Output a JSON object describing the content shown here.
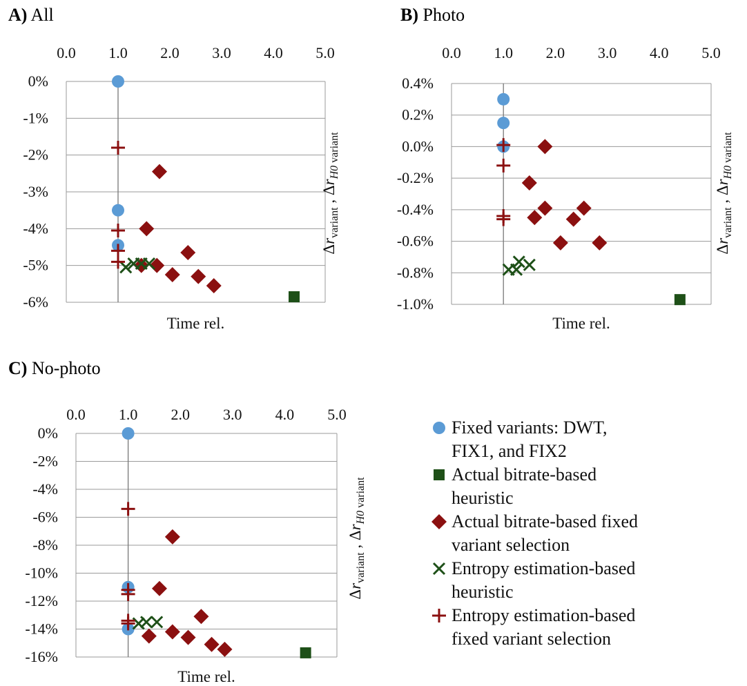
{
  "legend": [
    {
      "key": "fixed",
      "label_lines": [
        "Fixed variants: DWT,",
        "FIX1, and FIX2"
      ],
      "marker": "circle",
      "color": "#5B9BD5"
    },
    {
      "key": "actual_heuristic",
      "label_lines": [
        "Actual bitrate-based",
        "heuristic"
      ],
      "marker": "square",
      "color": "#1E5018"
    },
    {
      "key": "actual_fixed",
      "label_lines": [
        "Actual bitrate-based fixed",
        "variant selection"
      ],
      "marker": "diamond",
      "color": "#8B1010"
    },
    {
      "key": "entropy_heuristic",
      "label_lines": [
        "Entropy estimation-based",
        "heuristic"
      ],
      "marker": "x",
      "color": "#1E5018"
    },
    {
      "key": "entropy_fixed",
      "label_lines": [
        "Entropy estimation-based",
        "fixed variant selection"
      ],
      "marker": "plus",
      "color": "#8B1010"
    }
  ],
  "chart_data": [
    {
      "panel": "A)",
      "title": "All",
      "type": "scatter",
      "xlabel": "Time rel.",
      "ylabel": "Δr_variant , Δr_H0 variant",
      "xlim": [
        0,
        5
      ],
      "xticks": [
        "0.0",
        "1.0",
        "2.0",
        "3.0",
        "4.0",
        "5.0"
      ],
      "ylim": [
        -6,
        0
      ],
      "yticks": [
        "0%",
        "-1%",
        "-2%",
        "-3%",
        "-4%",
        "-5%",
        "-6%"
      ],
      "yunit": "%",
      "series": [
        {
          "key": "fixed",
          "points": [
            [
              1.0,
              0.0
            ],
            [
              1.0,
              -3.5
            ],
            [
              1.0,
              -4.45
            ]
          ]
        },
        {
          "key": "actual_heuristic",
          "points": [
            [
              4.4,
              -5.85
            ]
          ]
        },
        {
          "key": "actual_fixed",
          "points": [
            [
              1.8,
              -2.45
            ],
            [
              1.55,
              -4.0
            ],
            [
              1.45,
              -5.0
            ],
            [
              1.75,
              -5.0
            ],
            [
              2.35,
              -4.65
            ],
            [
              2.05,
              -5.25
            ],
            [
              2.55,
              -5.3
            ],
            [
              2.85,
              -5.55
            ]
          ]
        },
        {
          "key": "entropy_heuristic",
          "points": [
            [
              1.15,
              -5.05
            ],
            [
              1.3,
              -4.95
            ],
            [
              1.45,
              -4.95
            ],
            [
              1.6,
              -4.95
            ]
          ]
        },
        {
          "key": "entropy_fixed",
          "points": [
            [
              1.0,
              -1.8
            ],
            [
              1.0,
              -4.05
            ],
            [
              1.0,
              -4.6
            ],
            [
              1.0,
              -4.9
            ]
          ]
        }
      ]
    },
    {
      "panel": "B)",
      "title": "Photo",
      "type": "scatter",
      "xlabel": "Time rel.",
      "ylabel": "Δr_variant , Δr_H0 variant",
      "xlim": [
        0,
        5
      ],
      "xticks": [
        "0.0",
        "1.0",
        "2.0",
        "3.0",
        "4.0",
        "5.0"
      ],
      "ylim": [
        -1.0,
        0.4
      ],
      "yticks": [
        "0.4%",
        "0.2%",
        "0.0%",
        "-0.2%",
        "-0.4%",
        "-0.6%",
        "-0.8%",
        "-1.0%"
      ],
      "yunit": "%",
      "series": [
        {
          "key": "fixed",
          "points": [
            [
              1.0,
              0.3
            ],
            [
              1.0,
              0.15
            ],
            [
              1.0,
              0.0
            ]
          ]
        },
        {
          "key": "actual_heuristic",
          "points": [
            [
              4.4,
              -0.97
            ]
          ]
        },
        {
          "key": "actual_fixed",
          "points": [
            [
              1.8,
              0.0
            ],
            [
              1.5,
              -0.23
            ],
            [
              1.8,
              -0.39
            ],
            [
              1.6,
              -0.45
            ],
            [
              2.55,
              -0.39
            ],
            [
              2.35,
              -0.46
            ],
            [
              2.1,
              -0.61
            ],
            [
              2.85,
              -0.61
            ]
          ]
        },
        {
          "key": "entropy_heuristic",
          "points": [
            [
              1.1,
              -0.78
            ],
            [
              1.25,
              -0.78
            ],
            [
              1.3,
              -0.73
            ],
            [
              1.5,
              -0.75
            ]
          ]
        },
        {
          "key": "entropy_fixed",
          "points": [
            [
              1.0,
              0.01
            ],
            [
              1.0,
              -0.12
            ],
            [
              1.0,
              -0.44
            ],
            [
              1.0,
              -0.46
            ]
          ]
        }
      ]
    },
    {
      "panel": "C)",
      "title": "No-photo",
      "type": "scatter",
      "xlabel": "Time rel.",
      "ylabel": "Δr_variant , Δr_H0 variant",
      "xlim": [
        0,
        5
      ],
      "xticks": [
        "0.0",
        "1.0",
        "2.0",
        "3.0",
        "4.0",
        "5.0"
      ],
      "ylim": [
        -16,
        0
      ],
      "yticks": [
        "0%",
        "-2%",
        "-4%",
        "-6%",
        "-8%",
        "-10%",
        "-12%",
        "-14%",
        "-16%"
      ],
      "yunit": "%",
      "series": [
        {
          "key": "fixed",
          "points": [
            [
              1.0,
              0.0
            ],
            [
              1.0,
              -11.0
            ],
            [
              1.0,
              -14.0
            ]
          ]
        },
        {
          "key": "actual_heuristic",
          "points": [
            [
              4.4,
              -15.7
            ]
          ]
        },
        {
          "key": "actual_fixed",
          "points": [
            [
              1.85,
              -7.4
            ],
            [
              1.6,
              -11.1
            ],
            [
              2.4,
              -13.1
            ],
            [
              1.4,
              -14.5
            ],
            [
              1.85,
              -14.2
            ],
            [
              2.15,
              -14.6
            ],
            [
              2.6,
              -15.1
            ],
            [
              2.85,
              -15.45
            ]
          ]
        },
        {
          "key": "entropy_heuristic",
          "points": [
            [
              1.2,
              -13.6
            ],
            [
              1.35,
              -13.5
            ],
            [
              1.55,
              -13.5
            ]
          ]
        },
        {
          "key": "entropy_fixed",
          "points": [
            [
              1.0,
              -5.4
            ],
            [
              1.0,
              -11.2
            ],
            [
              1.0,
              -11.5
            ],
            [
              1.0,
              -13.4
            ],
            [
              1.0,
              -13.6
            ]
          ]
        }
      ]
    }
  ]
}
